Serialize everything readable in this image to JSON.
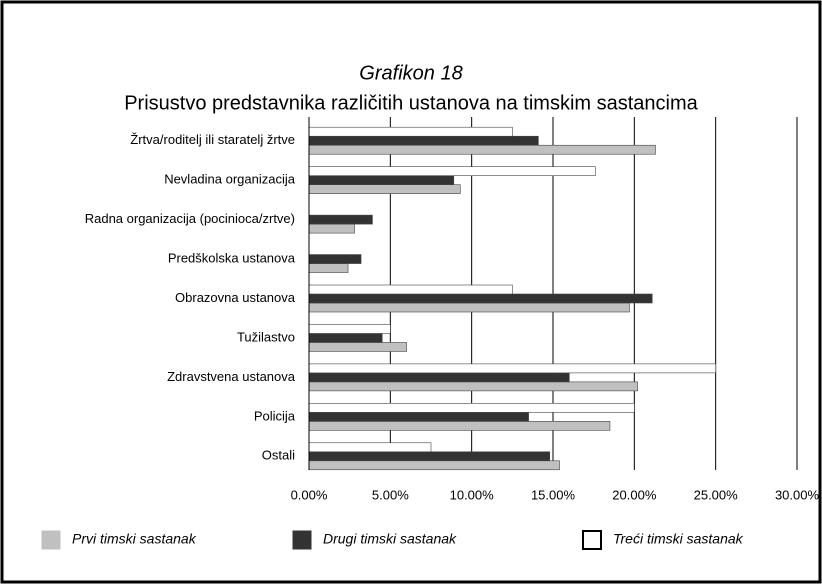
{
  "chart_data": {
    "type": "bar",
    "orientation": "horizontal",
    "title": "Grafikon 18",
    "subtitle": "Prisustvo predstavnika različitih ustanova na timskim sastancima",
    "categories": [
      "Žrtva/roditelj ili staratelj žrtve",
      "Nevladina organizacija",
      "Radna organizacija (pocinioca/zrtve)",
      "Predškolska ustanova",
      "Obrazovna ustanova",
      "Tužilastvo",
      "Zdravstvena ustanova",
      "Policija",
      "Ostali"
    ],
    "series": [
      {
        "name": "Prvi timski sastanak",
        "color": "#c0c0c0",
        "values": [
          21.3,
          9.3,
          2.8,
          2.4,
          19.7,
          6.0,
          20.2,
          18.5,
          15.4
        ]
      },
      {
        "name": "Drugi timski sastanak",
        "color": "#333333",
        "values": [
          14.1,
          8.9,
          3.9,
          3.2,
          21.1,
          4.5,
          16.0,
          13.5,
          14.8
        ]
      },
      {
        "name": "Treći timski sastanak",
        "color": "#ffffff",
        "values": [
          12.5,
          17.6,
          0,
          0,
          12.5,
          5.0,
          25.0,
          20.0,
          7.5
        ]
      }
    ],
    "xlim": [
      0,
      30
    ],
    "xticks": [
      {
        "value": 0,
        "label": "0.00%"
      },
      {
        "value": 5,
        "label": "5.00%"
      },
      {
        "value": 10,
        "label": "10.00%"
      },
      {
        "value": 15,
        "label": "15.00%"
      },
      {
        "value": 20,
        "label": "20.00%"
      },
      {
        "value": 25,
        "label": "25.00%"
      },
      {
        "value": 30,
        "label": "30.00%"
      }
    ],
    "grid": true
  }
}
